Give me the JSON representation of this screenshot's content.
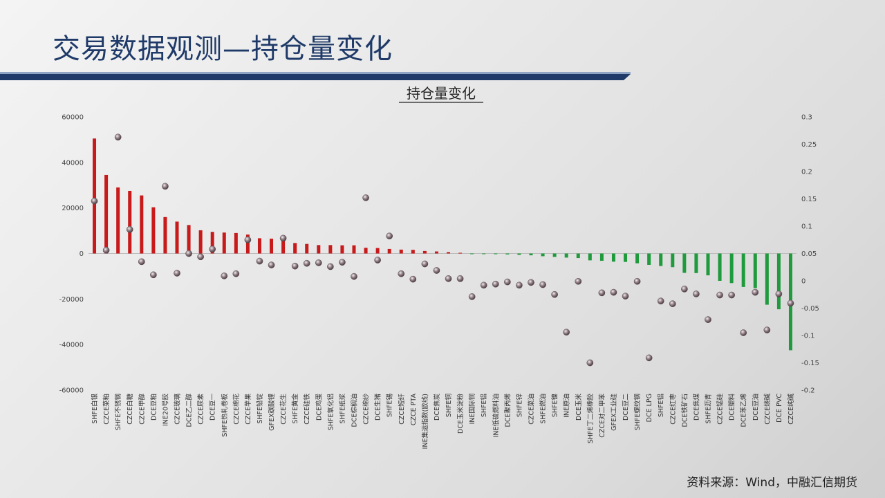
{
  "page": {
    "title": "交易数据观测—持仓量变化",
    "source": "资料来源：Wind，中融汇信期货",
    "colors": {
      "title": "#1f3a68",
      "bar_up": "#c81a1a",
      "bar_down": "#1f9a3c",
      "marker": "#9a8a90"
    }
  },
  "chart_data": {
    "type": "bar",
    "title": "持仓量变化",
    "title_underlined": true,
    "categories": [
      "SHFE白银",
      "CZCE菜粕",
      "SHFE不锈钢",
      "CZCE白糖",
      "CZCE甲醇",
      "DCE豆粕",
      "INE20号胶",
      "CZCE玻璃",
      "DCE乙二醇",
      "CZCE尿素",
      "DCE豆一",
      "SHFE热轧卷板",
      "CZCE棉花",
      "CZCE苹果",
      "SHFE铅锭",
      "GFEX碳酸锂",
      "CZCE花生",
      "SHFE黄金",
      "CZCE硅铁",
      "DCE鸡蛋",
      "SHFE氧化铝",
      "SHFE纸浆",
      "DCE棕榈油",
      "CZCE棉纱",
      "DCE生猪",
      "SHFE锡",
      "CZCE短纤",
      "CZCE PTA",
      "INE集运指数(欧线)",
      "DCE焦炭",
      "SHFE铜",
      "DCE玉米淀粉",
      "INE国际铜",
      "SHFE铝",
      "INE低硫燃料油",
      "DCE聚丙烯",
      "SHFE锌",
      "CZCE菜油",
      "SHFE燃油",
      "SHFE镍",
      "INE原油",
      "DCE玉米",
      "SHFE丁二烯橡胶",
      "CZCE对二甲苯",
      "GFEX工业硅",
      "DCE豆二",
      "SHFE螺纹钢",
      "DCE LPG",
      "SHFE铝",
      "CZCE红枣",
      "DCE铁矿石",
      "DCE焦煤",
      "SHFE沥青",
      "CZCE锰硅",
      "DCE塑料",
      "DCE苯乙烯",
      "DCE豆油",
      "CZCE烧碱",
      "DCE PVC",
      "CZCE纯碱"
    ],
    "series": [
      {
        "axis": "left",
        "chart": "bar",
        "values": [
          50500,
          34500,
          29000,
          27500,
          25500,
          20300,
          16000,
          14000,
          12500,
          10200,
          9500,
          9200,
          9000,
          8300,
          6700,
          6500,
          6200,
          4600,
          4200,
          3700,
          3700,
          3600,
          3600,
          2500,
          2400,
          2000,
          1700,
          1600,
          1100,
          900,
          600,
          300,
          -200,
          -200,
          -300,
          -400,
          -600,
          -800,
          -1200,
          -1500,
          -1800,
          -2000,
          -3000,
          -3200,
          -3600,
          -3700,
          -4300,
          -5000,
          -5500,
          -6000,
          -8500,
          -8600,
          -9600,
          -12000,
          -13000,
          -14700,
          -15200,
          -22500,
          -24500,
          -42500
        ]
      },
      {
        "axis": "right",
        "chart": "scatter",
        "values": [
          0.146,
          0.056,
          0.263,
          0.094,
          0.035,
          0.011,
          0.173,
          0.014,
          0.05,
          0.044,
          0.058,
          0.009,
          0.013,
          0.075,
          0.036,
          0.029,
          0.078,
          0.027,
          0.032,
          0.033,
          0.026,
          0.034,
          0.008,
          0.152,
          0.038,
          0.082,
          0.013,
          0.003,
          0.031,
          0.019,
          0.004,
          0.004,
          -0.029,
          -0.008,
          -0.006,
          -0.002,
          -0.008,
          -0.003,
          -0.007,
          -0.025,
          -0.094,
          -0.001,
          -0.15,
          -0.022,
          -0.021,
          -0.028,
          -0.001,
          -0.141,
          -0.037,
          -0.042,
          -0.015,
          -0.024,
          -0.071,
          -0.026,
          -0.026,
          -0.095,
          -0.021,
          -0.09,
          -0.024,
          -0.041
        ]
      }
    ],
    "y_left": {
      "min": -60000,
      "max": 60000,
      "ticks": [
        60000,
        40000,
        20000,
        0,
        -20000,
        -40000,
        -60000
      ]
    },
    "y_right": {
      "min": -0.2,
      "max": 0.3,
      "ticks": [
        "0.3",
        "0.25",
        "0.2",
        "0.15",
        "0.1",
        "0.05",
        "0",
        "-0.05",
        "-0.1",
        "-0.15",
        "-0.2"
      ]
    }
  }
}
